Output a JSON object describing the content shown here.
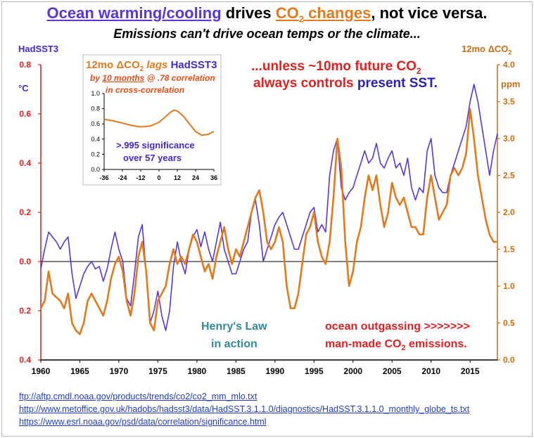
{
  "heading": {
    "title_part1": "Ocean warming/cooling",
    "title_part2": "drives",
    "title_part3": "CO",
    "title_part3_sub": "2",
    "title_part4": "changes",
    "title_part5": ", not vice versa.",
    "subtitle": "Emissions can't drive ocean temps or the climate..."
  },
  "axes_text": {
    "left_title": "HadSST3",
    "left_unit": "°C",
    "right_title": "12mo ΔCO",
    "right_title_sub": "2",
    "right_unit": "ppm"
  },
  "annotations": {
    "inset_title_a": "12mo ΔCO",
    "inset_title_sub": "2",
    "inset_title_b": " lags ",
    "inset_title_c": "HadSST3",
    "inset_sub1_a": "by ",
    "inset_sub1_b": "10 months",
    "inset_sub1_c": " @ .78 correlation",
    "inset_sub2": "in cross-correlation",
    "inset_sig1": ">.995 significance",
    "inset_sig2": "over 57 years",
    "unless_line1": "...unless ~10mo future CO",
    "unless_line1_sub": "2",
    "unless_line2_a": "always controls ",
    "unless_line2_b": "present SST.",
    "henry1": "Henry's Law",
    "henry2": "in action",
    "outgas1": "ocean outgassing  >>>>>>>",
    "outgas2_a": "man-made CO",
    "outgas2_sub": "2",
    "outgas2_b": " emissions."
  },
  "links": [
    "ftp://aftp.cmdl.noaa.gov/products/trends/co2/co2_mm_mlo.txt",
    "http://www.metoffice.gov.uk/hadobs/hadsst3/data/HadSST.3.1.1.0/diagnostics/HadSST.3.1.1.0_monthly_globe_ts.txt",
    "https://www.esrl.noaa.gov/psd/data/correlation/significance.html"
  ],
  "colors": {
    "sst": "#5a35d6",
    "co2": "#e07a1c",
    "left_axis": "#d42020",
    "right_axis": "#cc6d10",
    "bottom_axis": "#000000"
  },
  "chart_data": [
    {
      "type": "line",
      "title": "HadSST3 and 12mo ΔCO2",
      "x_ticks": [
        1960,
        1965,
        1970,
        1975,
        1980,
        1985,
        1990,
        1995,
        2000,
        2005,
        2010,
        2015
      ],
      "xlim": [
        1960,
        2018.5
      ],
      "y_left": {
        "label": "HadSST3 (°C)",
        "lim": [
          -0.4,
          0.8
        ],
        "ticks": [
          -0.4,
          -0.2,
          0.0,
          0.2,
          0.4,
          0.6,
          0.8
        ],
        "tick_labels": [
          "0.4",
          "0.2",
          "0.0",
          "0.2",
          "0.4",
          "0.6",
          "0.8"
        ]
      },
      "y_right": {
        "label": "12mo ΔCO2 (ppm)",
        "lim": [
          0.0,
          4.0
        ],
        "ticks": [
          0.0,
          0.5,
          1.0,
          1.5,
          2.0,
          2.5,
          3.0,
          3.5,
          4.0
        ],
        "tick_labels": [
          "0.0",
          "0.5",
          "1.0",
          "1.5",
          "2.0",
          "2.5",
          "3.0",
          "3.5",
          "4.0"
        ]
      },
      "series": [
        {
          "name": "HadSST3",
          "axis": "left",
          "x": [
            1960,
            1960.5,
            1961,
            1961.5,
            1962,
            1962.5,
            1963,
            1963.5,
            1964,
            1964.5,
            1965,
            1965.5,
            1966,
            1966.5,
            1967,
            1967.5,
            1968,
            1968.5,
            1969,
            1969.5,
            1970,
            1970.5,
            1971,
            1971.5,
            1972,
            1972.5,
            1973,
            1973.5,
            1974,
            1974.5,
            1975,
            1975.5,
            1976,
            1976.5,
            1977,
            1977.5,
            1978,
            1978.5,
            1979,
            1979.5,
            1980,
            1980.5,
            1981,
            1981.5,
            1982,
            1982.5,
            1983,
            1983.5,
            1984,
            1984.5,
            1985,
            1985.5,
            1986,
            1986.5,
            1987,
            1987.5,
            1988,
            1988.5,
            1989,
            1989.5,
            1990,
            1990.5,
            1991,
            1991.5,
            1992,
            1992.5,
            1993,
            1993.5,
            1994,
            1994.5,
            1995,
            1995.5,
            1996,
            1996.5,
            1997,
            1997.5,
            1998,
            1998.5,
            1999,
            1999.5,
            2000,
            2000.5,
            2001,
            2001.5,
            2002,
            2002.5,
            2003,
            2003.5,
            2004,
            2004.5,
            2005,
            2005.5,
            2006,
            2006.5,
            2007,
            2007.5,
            2008,
            2008.5,
            2009,
            2009.5,
            2010,
            2010.5,
            2011,
            2011.5,
            2012,
            2012.5,
            2013,
            2013.5,
            2014,
            2014.5,
            2015,
            2015.5,
            2016,
            2016.5,
            2017,
            2017.5,
            2018,
            2018.5
          ],
          "values": [
            -0.03,
            0.05,
            0.12,
            0.1,
            0.08,
            0.05,
            0.08,
            0.1,
            -0.05,
            -0.15,
            -0.1,
            -0.05,
            -0.02,
            0.0,
            -0.03,
            -0.02,
            -0.08,
            -0.03,
            0.05,
            0.12,
            0.05,
            0.0,
            -0.15,
            -0.18,
            -0.05,
            0.1,
            0.15,
            -0.05,
            -0.25,
            -0.2,
            -0.12,
            -0.22,
            -0.28,
            -0.2,
            -0.02,
            0.08,
            0.0,
            -0.05,
            0.05,
            0.1,
            0.13,
            0.06,
            0.12,
            0.05,
            0.0,
            0.08,
            0.16,
            0.05,
            0.0,
            -0.05,
            -0.05,
            0.0,
            0.05,
            0.08,
            0.2,
            0.25,
            0.15,
            0.0,
            0.05,
            0.1,
            0.15,
            0.18,
            0.2,
            0.15,
            0.1,
            0.05,
            0.05,
            0.1,
            0.15,
            0.2,
            0.22,
            0.12,
            0.15,
            0.12,
            0.35,
            0.45,
            0.5,
            0.3,
            0.25,
            0.28,
            0.3,
            0.35,
            0.4,
            0.45,
            0.4,
            0.42,
            0.48,
            0.4,
            0.38,
            0.42,
            0.45,
            0.38,
            0.4,
            0.35,
            0.42,
            0.3,
            0.25,
            0.3,
            0.28,
            0.45,
            0.5,
            0.35,
            0.3,
            0.28,
            0.28,
            0.35,
            0.4,
            0.45,
            0.5,
            0.55,
            0.65,
            0.72,
            0.65,
            0.55,
            0.45,
            0.35,
            0.45,
            0.52
          ]
        },
        {
          "name": "12mo ΔCO2",
          "axis": "right",
          "x": [
            1960,
            1960.5,
            1961,
            1961.5,
            1962,
            1962.5,
            1963,
            1963.5,
            1964,
            1964.5,
            1965,
            1965.5,
            1966,
            1966.5,
            1967,
            1967.5,
            1968,
            1968.5,
            1969,
            1969.5,
            1970,
            1970.5,
            1971,
            1971.5,
            1972,
            1972.5,
            1973,
            1973.5,
            1974,
            1974.5,
            1975,
            1975.5,
            1976,
            1976.5,
            1977,
            1977.5,
            1978,
            1978.5,
            1979,
            1979.5,
            1980,
            1980.5,
            1981,
            1981.5,
            1982,
            1982.5,
            1983,
            1983.5,
            1984,
            1984.5,
            1985,
            1985.5,
            1986,
            1986.5,
            1987,
            1987.5,
            1988,
            1988.5,
            1989,
            1989.5,
            1990,
            1990.5,
            1991,
            1991.5,
            1992,
            1992.5,
            1993,
            1993.5,
            1994,
            1994.5,
            1995,
            1995.5,
            1996,
            1996.5,
            1997,
            1997.5,
            1998,
            1998.5,
            1999,
            1999.5,
            2000,
            2000.5,
            2001,
            2001.5,
            2002,
            2002.5,
            2003,
            2003.5,
            2004,
            2004.5,
            2005,
            2005.5,
            2006,
            2006.5,
            2007,
            2007.5,
            2008,
            2008.5,
            2009,
            2009.5,
            2010,
            2010.5,
            2011,
            2011.5,
            2012,
            2012.5,
            2013,
            2013.5,
            2014,
            2014.5,
            2015,
            2015.5,
            2016,
            2016.5,
            2017,
            2017.5,
            2018,
            2018.5
          ],
          "values": [
            0.7,
            0.8,
            1.2,
            0.9,
            0.85,
            0.8,
            0.7,
            0.9,
            0.5,
            0.4,
            0.35,
            0.5,
            0.8,
            0.9,
            0.8,
            0.7,
            0.6,
            0.8,
            1.1,
            1.3,
            1.4,
            1.2,
            0.8,
            0.6,
            0.9,
            1.4,
            1.6,
            1.2,
            0.5,
            0.4,
            0.8,
            0.9,
            1.0,
            1.3,
            1.5,
            1.3,
            1.4,
            1.3,
            1.5,
            1.7,
            1.6,
            1.4,
            1.2,
            1.3,
            1.1,
            1.4,
            1.6,
            1.8,
            1.5,
            1.3,
            1.5,
            1.4,
            1.6,
            1.8,
            2.0,
            2.2,
            2.3,
            2.0,
            1.6,
            1.5,
            1.6,
            1.8,
            1.6,
            1.0,
            0.7,
            0.7,
            0.9,
            1.3,
            1.7,
            1.8,
            2.0,
            1.6,
            1.4,
            1.3,
            1.6,
            2.2,
            3.0,
            2.6,
            1.6,
            1.0,
            1.2,
            1.6,
            1.8,
            2.2,
            2.5,
            2.3,
            2.5,
            2.1,
            1.8,
            2.0,
            2.4,
            2.2,
            2.1,
            2.2,
            2.0,
            1.8,
            1.8,
            1.7,
            1.7,
            2.2,
            2.5,
            2.2,
            1.9,
            2.0,
            2.1,
            2.5,
            2.6,
            2.5,
            2.6,
            2.8,
            3.4,
            3.0,
            2.5,
            2.2,
            1.9,
            1.7,
            1.6,
            1.6
          ]
        }
      ]
    },
    {
      "type": "line",
      "title": "cross-correlation",
      "x_ticks": [
        -36,
        -24,
        -12,
        0,
        12,
        24,
        36
      ],
      "xlim": [
        -36,
        36
      ],
      "ylim": [
        0.0,
        1.0
      ],
      "y_ticks": [
        0.0,
        0.2,
        0.4,
        0.6,
        0.8,
        1.0
      ],
      "series": [
        {
          "name": "cross-correlation",
          "x": [
            -36,
            -30,
            -24,
            -18,
            -12,
            -6,
            0,
            4,
            8,
            10,
            12,
            16,
            20,
            24,
            28,
            32,
            36
          ],
          "values": [
            0.66,
            0.64,
            0.61,
            0.58,
            0.56,
            0.57,
            0.62,
            0.69,
            0.76,
            0.78,
            0.77,
            0.7,
            0.6,
            0.5,
            0.45,
            0.46,
            0.5
          ]
        }
      ]
    }
  ]
}
